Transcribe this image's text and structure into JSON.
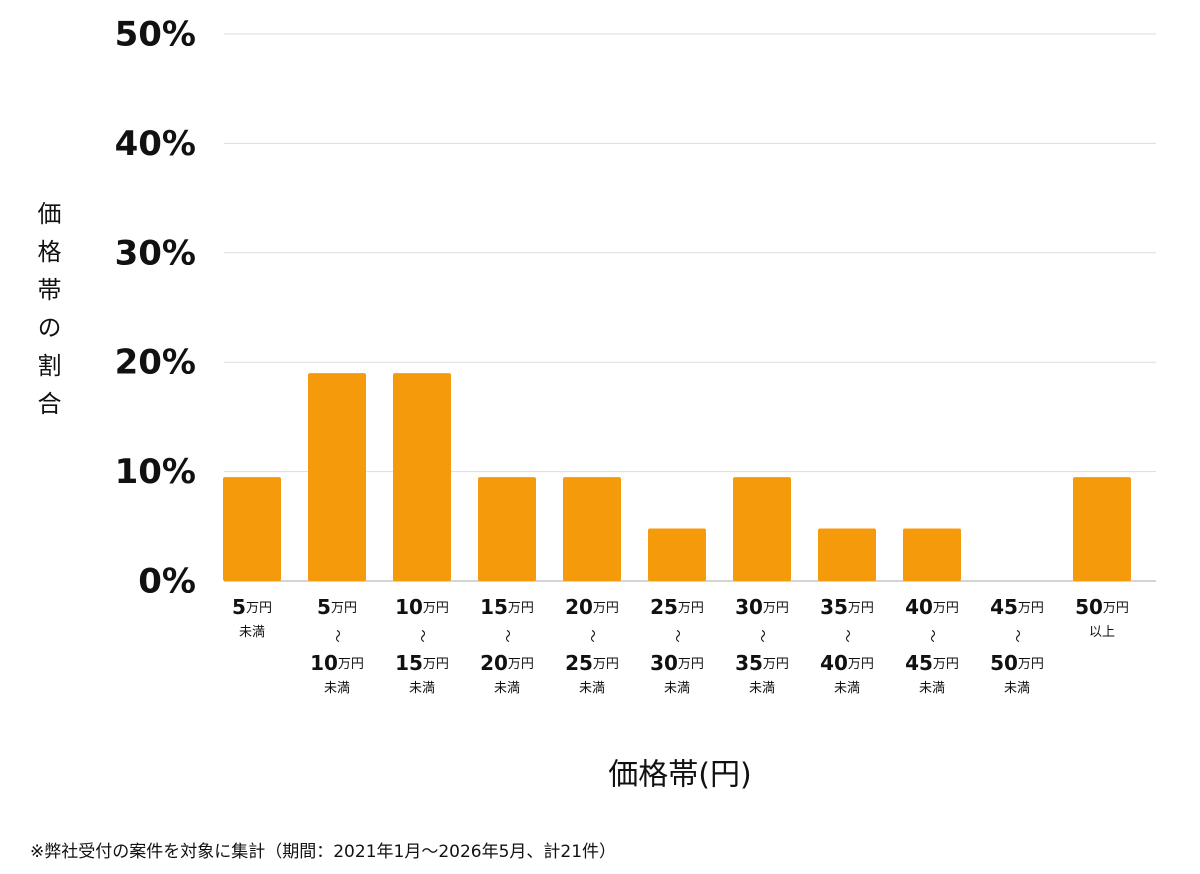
{
  "chart_data": {
    "type": "bar",
    "y_label": "価格帯の割合",
    "x_label": "価格帯(円)",
    "footnote": "※弊社受付の案件を対象に集計（期間：2021年1月〜2026年5月、計21件）",
    "categories": [
      [
        "5万円",
        "未満"
      ],
      [
        "5万円",
        "〜",
        "10万円",
        "未満"
      ],
      [
        "10万円",
        "〜",
        "15万円",
        "未満"
      ],
      [
        "15万円",
        "〜",
        "20万円",
        "未満"
      ],
      [
        "20万円",
        "〜",
        "25万円",
        "未満"
      ],
      [
        "25万円",
        "〜",
        "30万円",
        "未満"
      ],
      [
        "30万円",
        "〜",
        "35万円",
        "未満"
      ],
      [
        "35万円",
        "〜",
        "40万円",
        "未満"
      ],
      [
        "40万円",
        "〜",
        "45万円",
        "未満"
      ],
      [
        "45万円",
        "〜",
        "50万円",
        "未満"
      ],
      [
        "50万円",
        "以上"
      ]
    ],
    "values": [
      9.5,
      19,
      19,
      9.5,
      9.5,
      4.8,
      9.5,
      4.8,
      4.8,
      0,
      9.5
    ],
    "color": "#f59a0a",
    "ylim": [
      0,
      50
    ],
    "yticks": [
      {
        "value": 0,
        "label": "0%"
      },
      {
        "value": 10,
        "label": "10%"
      },
      {
        "value": 20,
        "label": "20%"
      },
      {
        "value": 30,
        "label": "30%"
      },
      {
        "value": 40,
        "label": "40%"
      },
      {
        "value": 50,
        "label": "50%"
      }
    ],
    "grid": true
  }
}
